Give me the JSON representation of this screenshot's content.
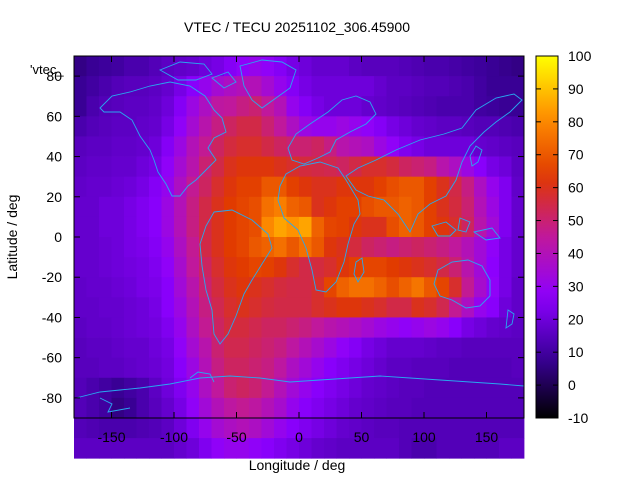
{
  "chart_data": {
    "type": "heatmap",
    "title": "VTEC / TECU 20251102_306.45900",
    "xlabel": "Longitude / deg",
    "ylabel": "Latitude / deg",
    "xlim": [
      -180,
      180
    ],
    "ylim": [
      -90,
      90
    ],
    "x_ticks": [
      -150,
      -100,
      -50,
      0,
      50,
      100,
      150
    ],
    "y_ticks": [
      -80,
      -60,
      -40,
      -20,
      0,
      20,
      40,
      60,
      80
    ],
    "legend_label": "'vtec_",
    "colorbar": {
      "min": -10,
      "max": 100,
      "ticks": [
        -10,
        0,
        10,
        20,
        30,
        40,
        50,
        60,
        70,
        80,
        90,
        100
      ],
      "palette": [
        "#000000",
        "#3a0098",
        "#8c00ff",
        "#c0189c",
        "#e03800",
        "#ff9000",
        "#ffff00"
      ]
    },
    "grid": {
      "lon_step": 10,
      "lat_step": 10
    },
    "vtec": [
      [
        6,
        8,
        9,
        10,
        12,
        12,
        14,
        16,
        17,
        18,
        20,
        22,
        25,
        28,
        30,
        28,
        25,
        22,
        20,
        18,
        18,
        18,
        16,
        15,
        15,
        15,
        14,
        13,
        12,
        12,
        11,
        10,
        9,
        8,
        7,
        6
      ],
      [
        8,
        10,
        12,
        14,
        15,
        15,
        16,
        18,
        22,
        26,
        30,
        35,
        38,
        40,
        40,
        35,
        30,
        25,
        22,
        20,
        20,
        20,
        20,
        20,
        18,
        16,
        16,
        15,
        14,
        14,
        13,
        12,
        10,
        8,
        8,
        8
      ],
      [
        8,
        12,
        14,
        15,
        16,
        16,
        17,
        20,
        25,
        32,
        38,
        44,
        45,
        48,
        50,
        45,
        40,
        30,
        25,
        22,
        20,
        20,
        20,
        18,
        17,
        16,
        15,
        14,
        13,
        12,
        12,
        12,
        10,
        9,
        8,
        8
      ],
      [
        12,
        14,
        15,
        16,
        16,
        17,
        18,
        22,
        28,
        35,
        42,
        48,
        52,
        55,
        55,
        50,
        45,
        38,
        32,
        30,
        30,
        32,
        30,
        28,
        25,
        22,
        20,
        18,
        17,
        16,
        16,
        15,
        14,
        14,
        13,
        12
      ],
      [
        15,
        16,
        16,
        17,
        17,
        18,
        20,
        25,
        32,
        40,
        46,
        52,
        56,
        58,
        58,
        55,
        52,
        50,
        50,
        52,
        48,
        42,
        40,
        38,
        32,
        28,
        24,
        22,
        20,
        20,
        20,
        20,
        18,
        17,
        16,
        15
      ],
      [
        16,
        17,
        17,
        18,
        18,
        20,
        22,
        28,
        35,
        42,
        50,
        55,
        60,
        62,
        62,
        62,
        60,
        58,
        56,
        55,
        54,
        52,
        55,
        58,
        58,
        56,
        52,
        50,
        48,
        42,
        38,
        32,
        26,
        22,
        20,
        16
      ],
      [
        17,
        18,
        18,
        19,
        20,
        22,
        25,
        30,
        38,
        46,
        52,
        58,
        62,
        65,
        65,
        70,
        70,
        65,
        62,
        60,
        60,
        62,
        62,
        62,
        65,
        68,
        70,
        70,
        65,
        60,
        55,
        48,
        38,
        30,
        24,
        17
      ],
      [
        18,
        18,
        20,
        20,
        22,
        24,
        26,
        32,
        40,
        48,
        55,
        60,
        64,
        66,
        68,
        75,
        78,
        72,
        70,
        60,
        62,
        65,
        65,
        68,
        70,
        70,
        72,
        70,
        65,
        60,
        56,
        50,
        40,
        32,
        24,
        18
      ],
      [
        18,
        18,
        20,
        20,
        22,
        24,
        26,
        32,
        40,
        48,
        55,
        60,
        64,
        66,
        68,
        80,
        85,
        82,
        85,
        72,
        66,
        65,
        62,
        60,
        60,
        68,
        72,
        70,
        65,
        62,
        58,
        52,
        42,
        34,
        24,
        18
      ],
      [
        18,
        18,
        19,
        20,
        22,
        23,
        25,
        30,
        38,
        46,
        55,
        60,
        64,
        66,
        70,
        72,
        75,
        70,
        75,
        70,
        62,
        60,
        56,
        52,
        50,
        48,
        50,
        52,
        50,
        48,
        45,
        40,
        34,
        28,
        22,
        18
      ],
      [
        18,
        18,
        19,
        20,
        21,
        22,
        24,
        28,
        36,
        45,
        52,
        58,
        62,
        64,
        66,
        65,
        62,
        58,
        55,
        56,
        58,
        62,
        65,
        66,
        66,
        64,
        62,
        60,
        58,
        55,
        50,
        42,
        34,
        27,
        22,
        18
      ],
      [
        17,
        18,
        18,
        19,
        20,
        22,
        23,
        26,
        34,
        42,
        50,
        56,
        60,
        62,
        60,
        58,
        56,
        55,
        55,
        58,
        66,
        72,
        75,
        75,
        72,
        68,
        72,
        76,
        70,
        66,
        58,
        46,
        36,
        28,
        22,
        17
      ],
      [
        17,
        17,
        18,
        18,
        19,
        20,
        22,
        26,
        32,
        40,
        48,
        54,
        58,
        60,
        58,
        56,
        55,
        55,
        55,
        58,
        60,
        62,
        62,
        60,
        58,
        55,
        55,
        60,
        58,
        54,
        46,
        38,
        30,
        26,
        20,
        17
      ],
      [
        16,
        17,
        17,
        18,
        19,
        20,
        21,
        24,
        30,
        38,
        46,
        52,
        56,
        56,
        54,
        52,
        52,
        50,
        48,
        45,
        42,
        40,
        38,
        35,
        32,
        30,
        28,
        30,
        32,
        30,
        26,
        22,
        20,
        18,
        17,
        16
      ],
      [
        15,
        16,
        16,
        17,
        18,
        18,
        20,
        22,
        28,
        35,
        42,
        50,
        54,
        54,
        52,
        50,
        48,
        44,
        40,
        36,
        32,
        28,
        25,
        22,
        20,
        18,
        18,
        18,
        17,
        16,
        16,
        15,
        15,
        15,
        15,
        15
      ],
      [
        15,
        15,
        16,
        16,
        17,
        18,
        19,
        21,
        26,
        32,
        40,
        48,
        52,
        52,
        50,
        48,
        44,
        38,
        34,
        30,
        26,
        24,
        22,
        20,
        18,
        16,
        16,
        15,
        15,
        15,
        14,
        14,
        14,
        14,
        14,
        15
      ],
      [
        14,
        12,
        10,
        8,
        10,
        12,
        16,
        20,
        24,
        30,
        38,
        45,
        50,
        52,
        50,
        46,
        40,
        34,
        30,
        26,
        24,
        22,
        20,
        18,
        17,
        16,
        15,
        15,
        14,
        14,
        14,
        14,
        14,
        14,
        14,
        14
      ],
      [
        14,
        12,
        10,
        6,
        8,
        12,
        15,
        18,
        22,
        28,
        34,
        40,
        44,
        46,
        44,
        40,
        36,
        30,
        26,
        24,
        22,
        20,
        18,
        17,
        16,
        15,
        15,
        14,
        14,
        14,
        14,
        14,
        14,
        14,
        14,
        14
      ],
      [
        14,
        13,
        12,
        12,
        12,
        13,
        14,
        16,
        20,
        24,
        30,
        35,
        38,
        40,
        38,
        34,
        30,
        26,
        24,
        22,
        20,
        18,
        17,
        16,
        15,
        15,
        14,
        14,
        14,
        14,
        14,
        14,
        14,
        14,
        14,
        14
      ],
      [
        16,
        16,
        16,
        16,
        16,
        16,
        16,
        16,
        18,
        20,
        24,
        28,
        30,
        30,
        28,
        26,
        24,
        22,
        20,
        18,
        17,
        16,
        16,
        16,
        16,
        16,
        14,
        12,
        12,
        14,
        14,
        14,
        14,
        14,
        16,
        16
      ]
    ]
  }
}
